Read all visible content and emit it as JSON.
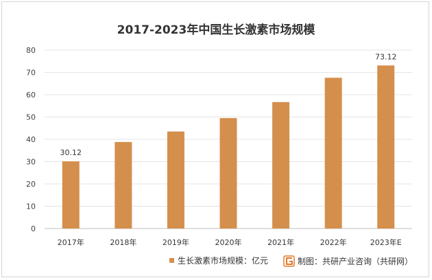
{
  "chart_data": {
    "type": "bar",
    "title": "2017-2023年中国生长激素市场规模",
    "categories": [
      "2017年",
      "2018年",
      "2019年",
      "2020年",
      "2021年",
      "2022年",
      "2023年E"
    ],
    "series": [
      {
        "name": "生长激素市场规模：亿元",
        "values": [
          30.12,
          38.8,
          43.5,
          49.5,
          56.7,
          67.6,
          73.12
        ],
        "data_labels": [
          "30.12",
          "",
          "",
          "",
          "",
          "",
          "73.12"
        ]
      }
    ],
    "ylim": [
      0,
      80
    ],
    "yticks": [
      "0",
      "10",
      "20",
      "30",
      "40",
      "50",
      "60",
      "70",
      "80"
    ],
    "grid": true,
    "legend_position": "bottom-left",
    "bar_color": "#d48f4c"
  },
  "source": {
    "text": "制图：共研产业咨询（共研网）",
    "logo_color": "#e07a2b"
  }
}
